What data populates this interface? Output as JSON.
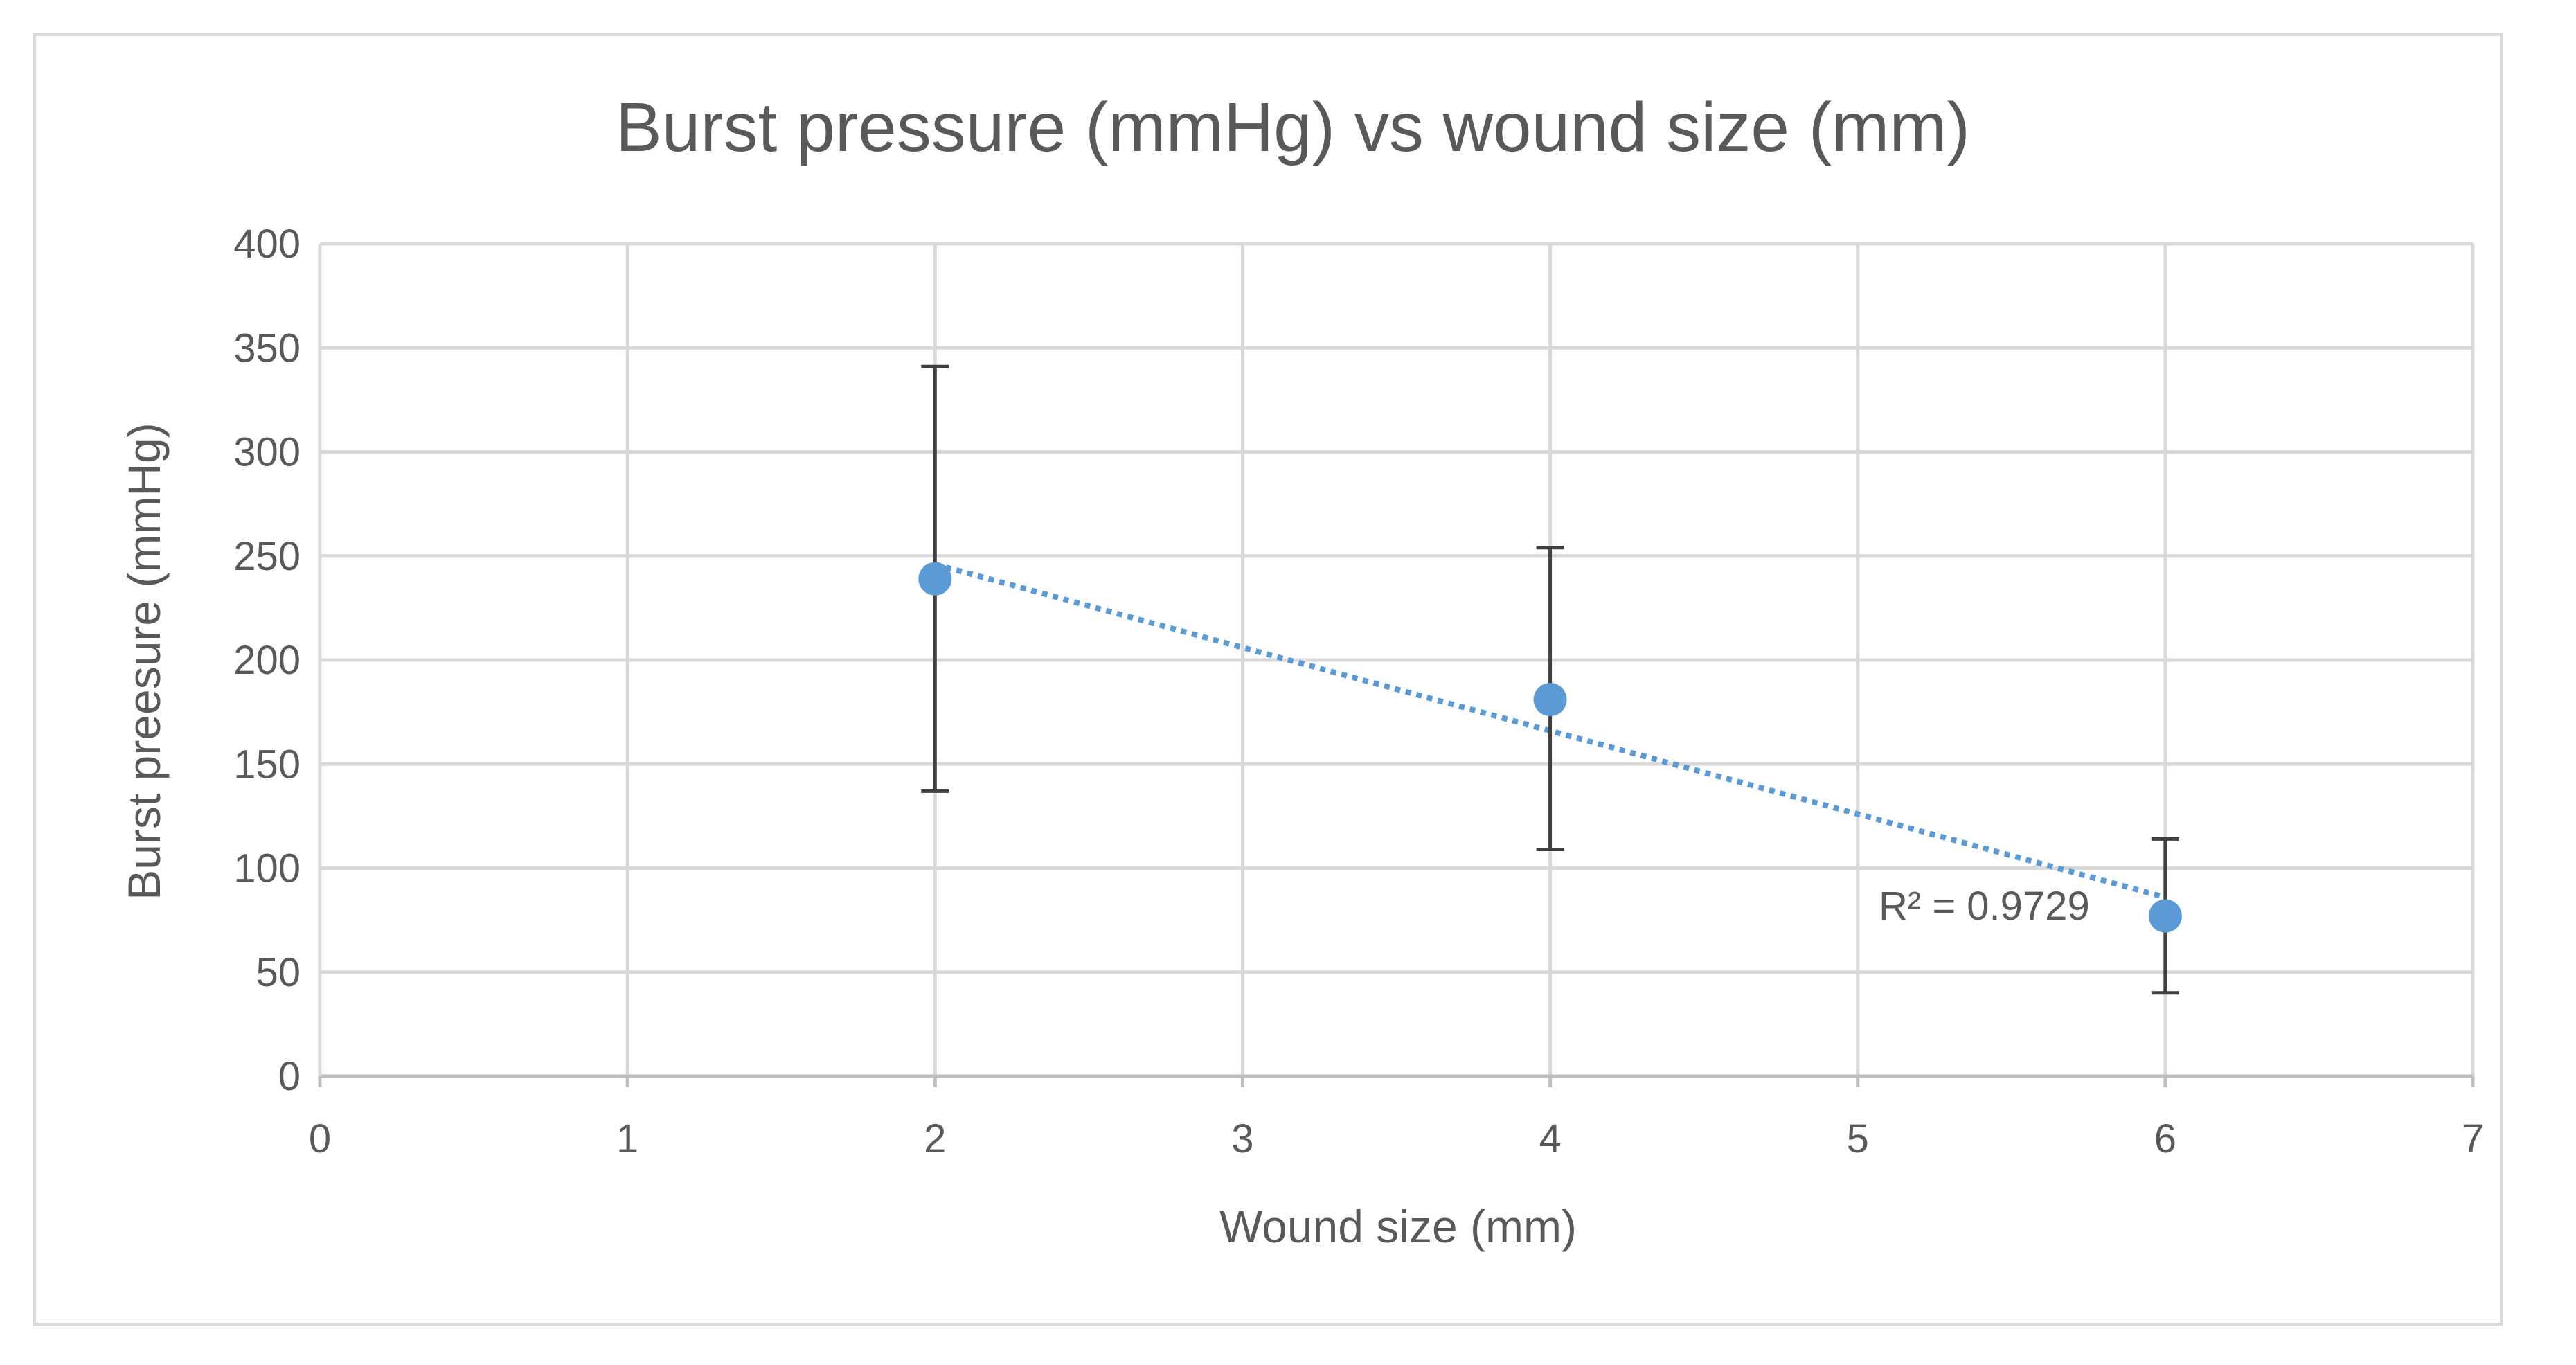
{
  "chart_data": {
    "type": "scatter",
    "title": "Burst pressure (mmHg) vs wound size (mm)",
    "xlabel": "Wound size (mm)",
    "ylabel": "Burst preesure (mmHg)",
    "xlim": [
      0,
      7
    ],
    "ylim": [
      0,
      400
    ],
    "x_ticks": [
      0,
      1,
      2,
      3,
      4,
      5,
      6,
      7
    ],
    "y_ticks": [
      0,
      50,
      100,
      150,
      200,
      250,
      300,
      350,
      400
    ],
    "grid": true,
    "legend": "none",
    "series": [
      {
        "x": [
          2,
          4,
          6
        ],
        "y": [
          239,
          181,
          77
        ],
        "error_low": [
          137,
          109,
          40
        ],
        "error_high": [
          341,
          254,
          114
        ],
        "color": "#5b9bd5"
      }
    ],
    "trendline": {
      "type": "linear",
      "x_start": 2,
      "y_start": 246,
      "x_end": 6,
      "y_end": 86,
      "color": "#5b9bd5",
      "style": "dotted",
      "r_squared_label": "R² = 0.9729"
    },
    "colors": {
      "grid": "#d9d9d9",
      "error_bar": "#404040",
      "text": "#595959"
    }
  }
}
